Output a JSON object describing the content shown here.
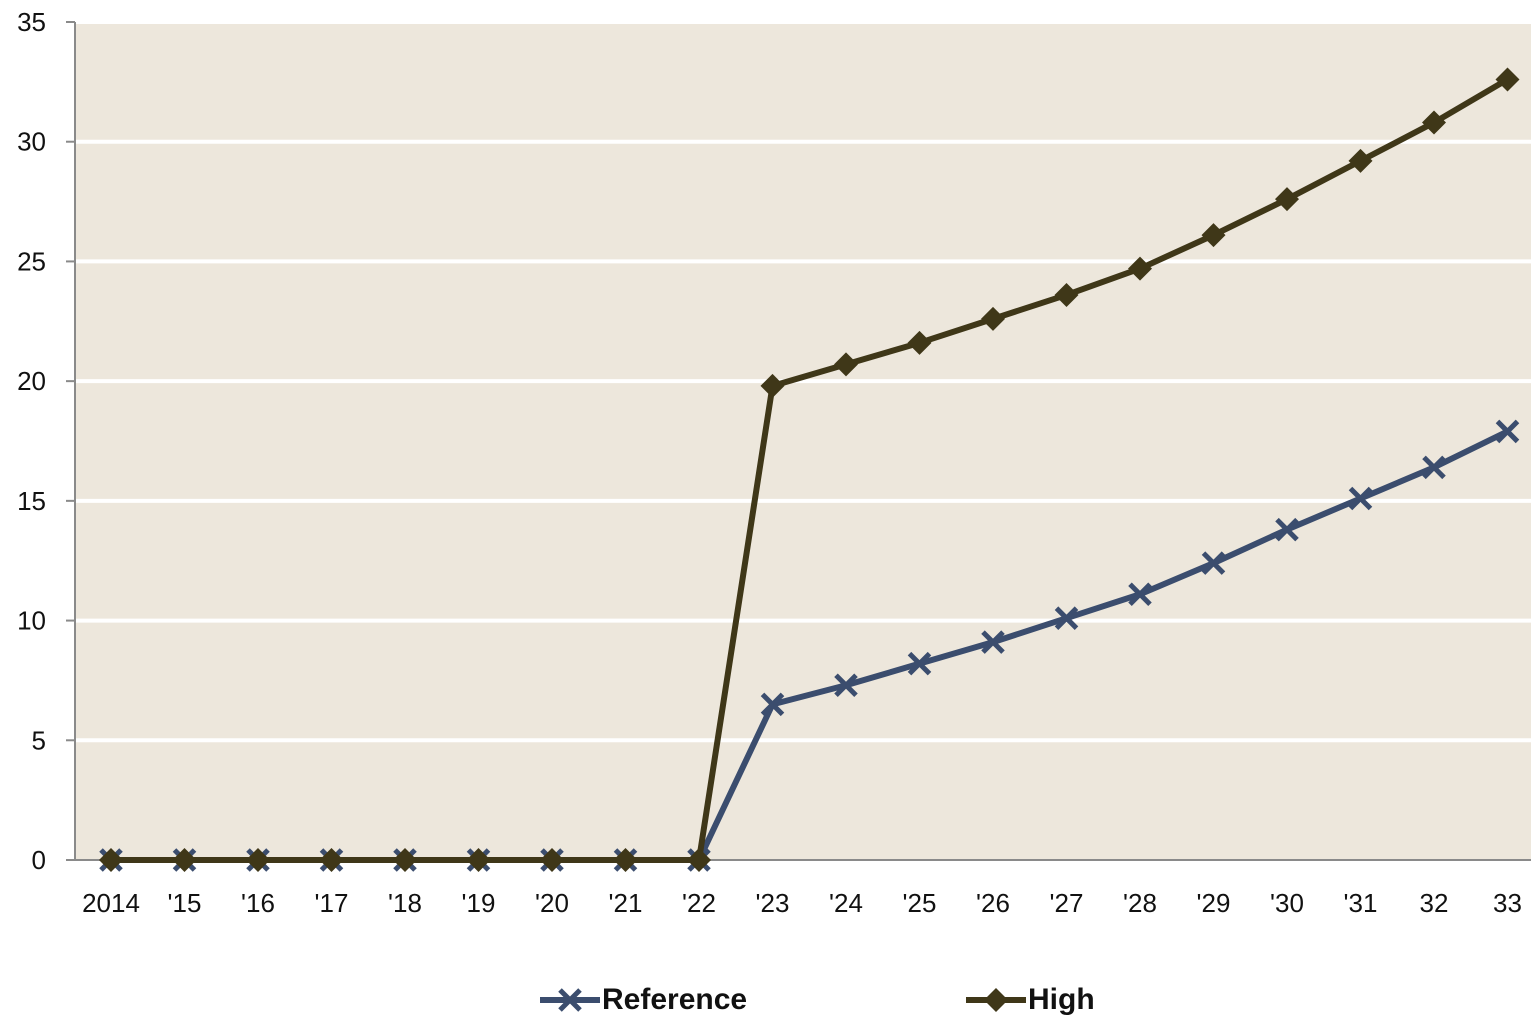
{
  "chart_data": {
    "type": "line",
    "categories": [
      "2014",
      "'15",
      "'16",
      "'17",
      "'18",
      "'19",
      "'20",
      "'21",
      "'22",
      "'23",
      "'24",
      "'25",
      "'26",
      "'27",
      "'28",
      "'29",
      "'30",
      "'31",
      "32",
      "33"
    ],
    "yticks": [
      "0",
      "5",
      "10",
      "15",
      "20",
      "25",
      "30",
      "35"
    ],
    "ylim": [
      0,
      35
    ],
    "grid": true,
    "legend_position": "bottom",
    "plot_background": "#ede7dc",
    "series": [
      {
        "name": "Reference",
        "marker": "x",
        "color": "#3b4d6e",
        "values": [
          0,
          0,
          0,
          0,
          0,
          0,
          0,
          0,
          0,
          6.5,
          7.3,
          8.2,
          9.1,
          10.1,
          11.1,
          12.4,
          13.8,
          15.1,
          16.4,
          17.9
        ]
      },
      {
        "name": "High",
        "marker": "diamond",
        "color": "#3f3718",
        "values": [
          0,
          0,
          0,
          0,
          0,
          0,
          0,
          0,
          0,
          19.8,
          20.7,
          21.6,
          22.6,
          23.6,
          24.7,
          26.1,
          27.6,
          29.2,
          30.8,
          32.6
        ]
      }
    ]
  }
}
